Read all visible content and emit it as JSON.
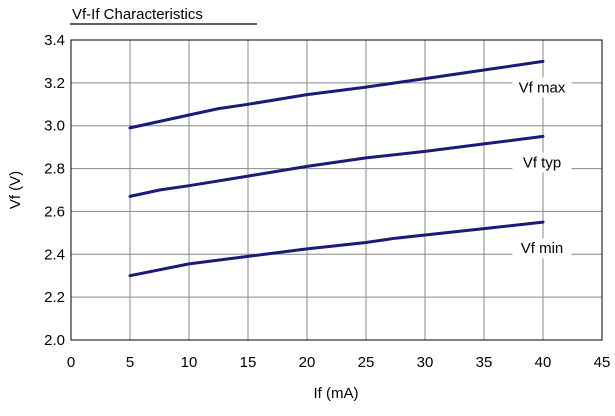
{
  "chart_data": {
    "type": "line",
    "title": "Vf-If Characteristics",
    "xlabel": "If (mA)",
    "ylabel": "Vf (V)",
    "xlim": [
      0,
      45
    ],
    "ylim": [
      2.0,
      3.4
    ],
    "xticks": [
      0,
      5,
      10,
      15,
      20,
      25,
      30,
      35,
      40,
      45
    ],
    "yticks": [
      2.0,
      2.2,
      2.4,
      2.6,
      2.8,
      3.0,
      3.2,
      3.4
    ],
    "xtick_labels": [
      "0",
      "5",
      "10",
      "15",
      "20",
      "25",
      "30",
      "35",
      "40",
      "45"
    ],
    "ytick_labels": [
      "2.0",
      "2.2",
      "2.4",
      "2.6",
      "2.8",
      "3.0",
      "3.2",
      "3.4"
    ],
    "grid": true,
    "line_color": "#1a1a7a",
    "series": [
      {
        "name": "Vf max",
        "x": [
          5,
          10,
          12.5,
          15,
          20,
          25,
          30,
          35,
          40
        ],
        "y": [
          2.99,
          3.05,
          3.08,
          3.1,
          3.145,
          3.18,
          3.22,
          3.26,
          3.3
        ]
      },
      {
        "name": "Vf typ",
        "x": [
          5,
          7.5,
          10,
          15,
          20,
          25,
          30,
          35,
          40
        ],
        "y": [
          2.67,
          2.7,
          2.72,
          2.765,
          2.81,
          2.85,
          2.88,
          2.915,
          2.95
        ]
      },
      {
        "name": "Vf min",
        "x": [
          5,
          10,
          15,
          20,
          25,
          27.5,
          30,
          35,
          40
        ],
        "y": [
          2.3,
          2.355,
          2.39,
          2.425,
          2.455,
          2.475,
          2.49,
          2.52,
          2.55
        ]
      }
    ]
  }
}
